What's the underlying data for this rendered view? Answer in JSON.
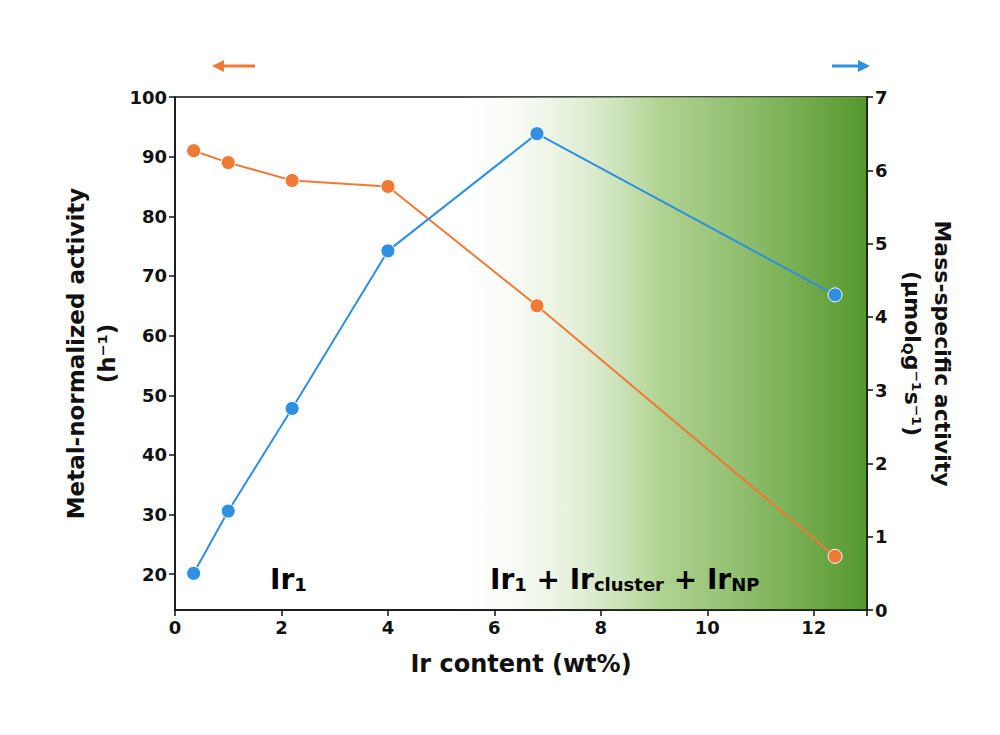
{
  "chart_data": {
    "type": "line",
    "x_label": "Ir content (wt%)",
    "y_label": [
      [
        {
          "text": "Metal-normalized activity"
        }
      ],
      [
        {
          "text": "(h⁻¹)"
        }
      ]
    ],
    "y2_label": [
      [
        {
          "text": "Mass-specific activity"
        }
      ],
      [
        {
          "text": "(μmol",
          "sub": "Q"
        },
        {
          "text": "g⁻¹s⁻¹)"
        }
      ]
    ],
    "x": [
      0.35,
      1.0,
      2.2,
      4.0,
      6.8,
      12.4
    ],
    "series": [
      {
        "name": "Metal-normalized activity",
        "color": "#f07a35",
        "marker": "circle",
        "values": [
          91,
          89,
          86,
          85,
          65,
          23
        ]
      },
      {
        "name": "Mass-specific activity",
        "color": "#2f8fe0",
        "marker": "circle",
        "axis": "y2",
        "values": [
          0.5,
          1.35,
          2.75,
          4.9,
          6.5,
          4.3
        ]
      }
    ],
    "xlim": [
      0,
      13
    ],
    "xticks": [
      0,
      2,
      4,
      6,
      8,
      10,
      12
    ],
    "ylim": [
      14,
      100
    ],
    "yticks": [
      20,
      30,
      40,
      50,
      60,
      70,
      80,
      90,
      100
    ],
    "y2lim": [
      0,
      7
    ],
    "y2ticks": [
      0,
      1,
      2,
      3,
      4,
      5,
      6,
      7
    ],
    "shaded_region": [
      5.2,
      13
    ],
    "grid": false,
    "annotations": [
      {
        "parts": [
          {
            "text": "Ir",
            "sub": "1",
            "color": "#3da2ec"
          }
        ]
      },
      {
        "parts": [
          {
            "text": "Ir",
            "sub": "1",
            "color": "#3da2ec"
          },
          {
            "text": " + ",
            "color": "#111111"
          },
          {
            "text": "Ir",
            "sub": "cluster",
            "color": "#2a72d6"
          },
          {
            "text": " + ",
            "color": "#111111"
          },
          {
            "text": "Ir",
            "sub": "NP",
            "color": "#1d3b9c"
          }
        ]
      }
    ]
  }
}
